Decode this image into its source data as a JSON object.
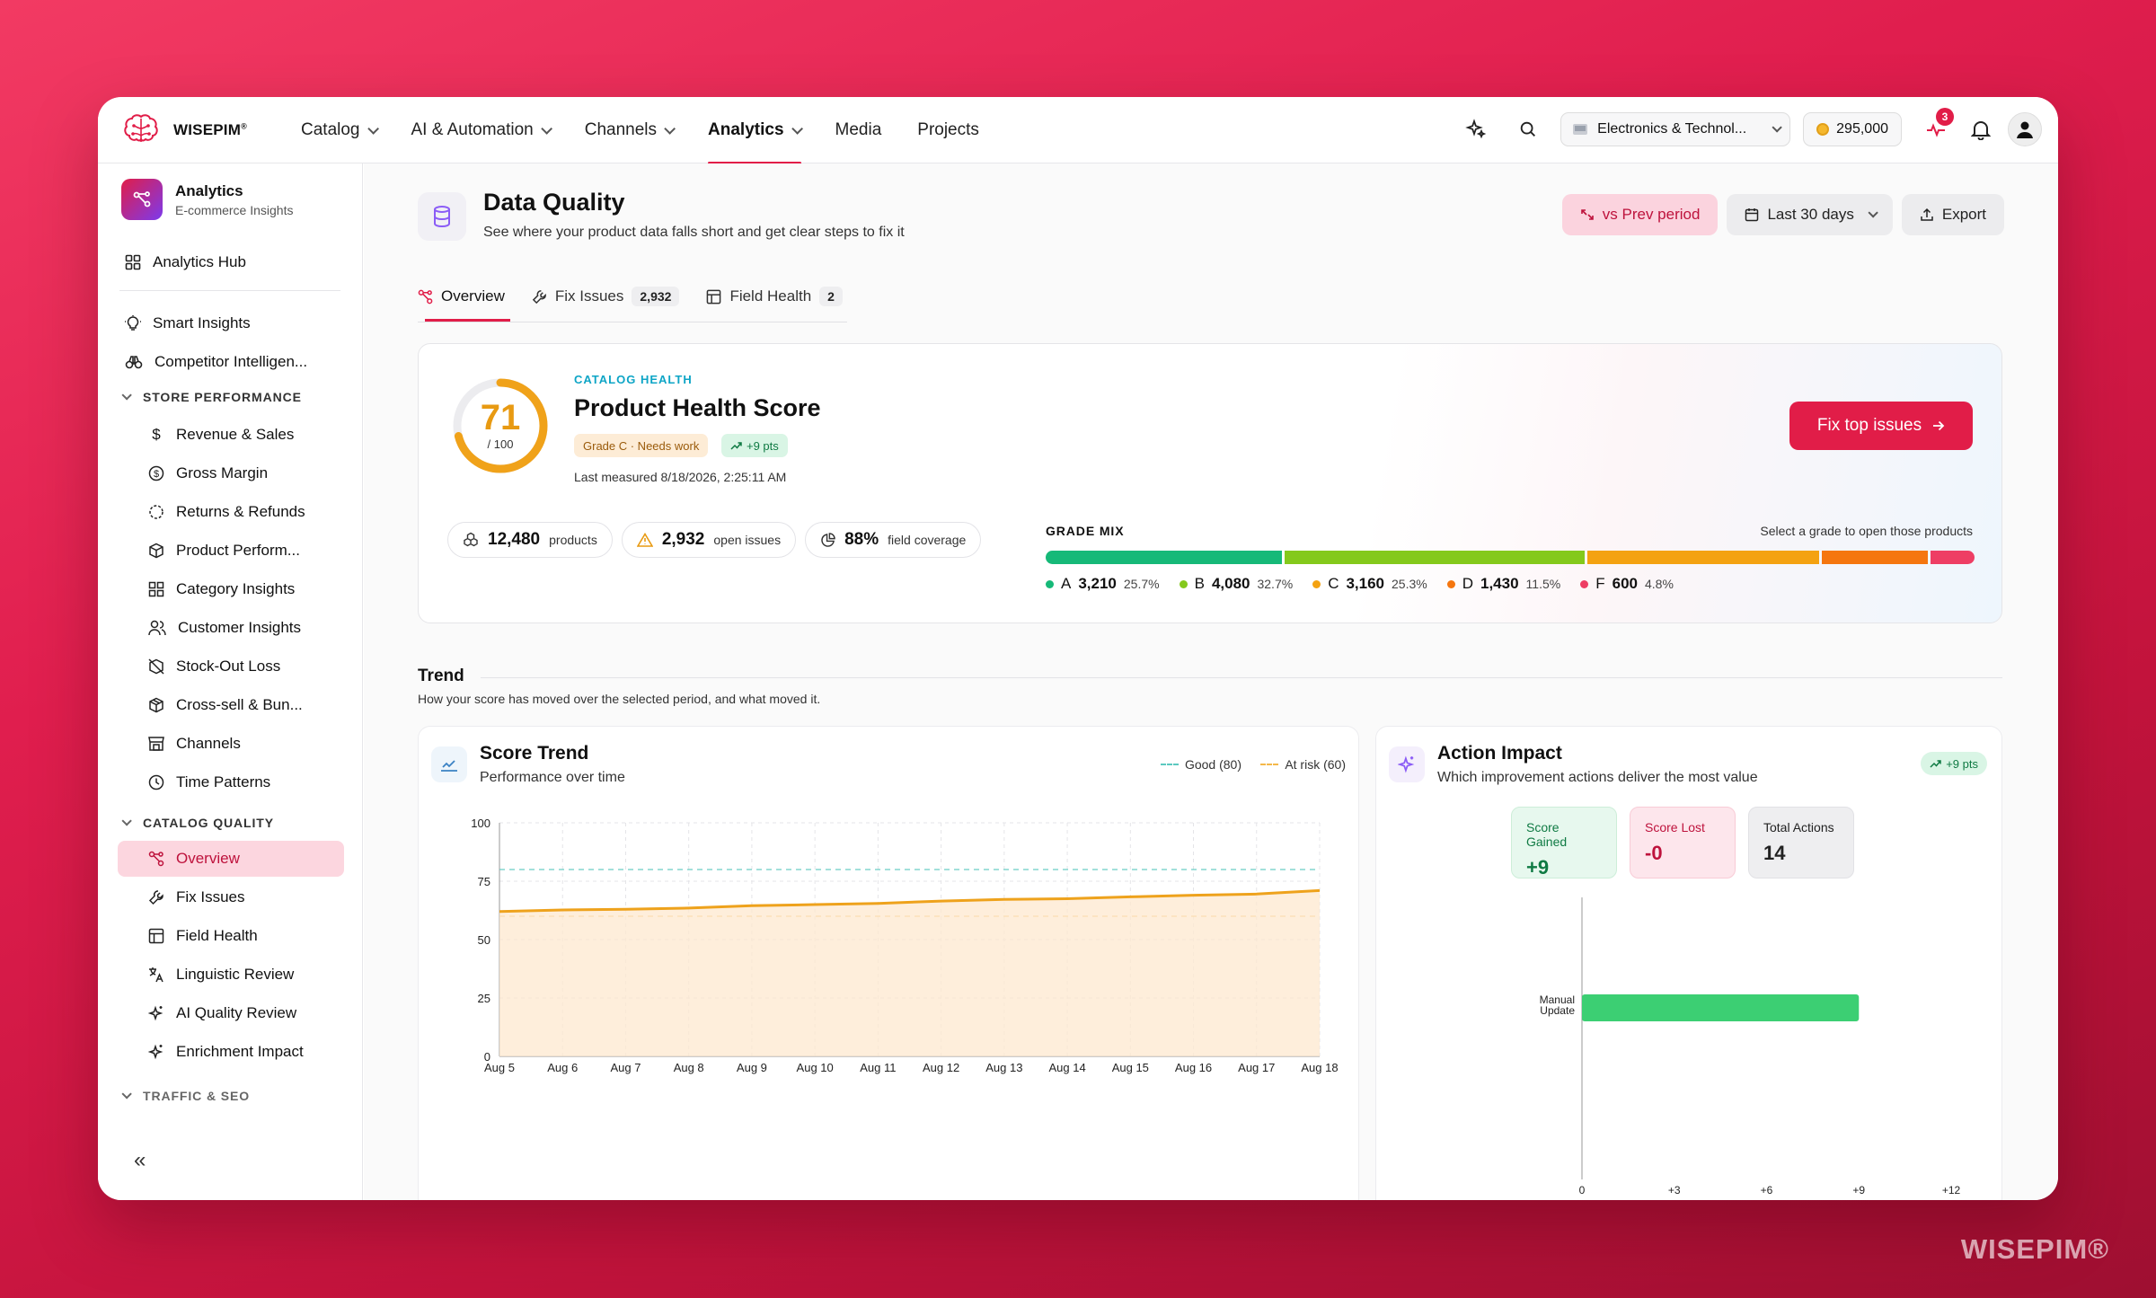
{
  "brand": {
    "name": "WISEPIM",
    "mark": "®",
    "watermark": "WISEPIM®"
  },
  "nav": {
    "items": [
      {
        "label": "Catalog",
        "dropdown": true
      },
      {
        "label": "AI & Automation",
        "dropdown": true
      },
      {
        "label": "Channels",
        "dropdown": true
      },
      {
        "label": "Analytics",
        "dropdown": true,
        "active": true
      },
      {
        "label": "Media"
      },
      {
        "label": "Projects"
      }
    ],
    "store": "Electronics & Technol...",
    "coins": "295,000",
    "alerts_count": "3"
  },
  "sidebar": {
    "title": "Analytics",
    "subtitle": "E-commerce Insights",
    "hub": "Analytics Hub",
    "top_items": [
      "Smart Insights",
      "Competitor Intelligen..."
    ],
    "sections": [
      {
        "label": "STORE PERFORMANCE",
        "items": [
          "Revenue & Sales",
          "Gross Margin",
          "Returns & Refunds",
          "Product Perform...",
          "Category Insights",
          "Customer Insights",
          "Stock-Out Loss",
          "Cross-sell & Bun...",
          "Channels",
          "Time Patterns"
        ]
      },
      {
        "label": "CATALOG QUALITY",
        "items": [
          "Overview",
          "Fix Issues",
          "Field Health",
          "Linguistic Review",
          "AI Quality Review",
          "Enrichment Impact"
        ]
      },
      {
        "label": "TRAFFIC & SEO",
        "items": []
      }
    ],
    "active_item": "Overview",
    "collapse": "«"
  },
  "page": {
    "title": "Data Quality",
    "subtitle": "See where your product data falls short and get clear steps to fix it",
    "actions": {
      "compare": "vs Prev period",
      "range": "Last 30 days",
      "export": "Export"
    },
    "tabs": [
      {
        "label": "Overview",
        "count": ""
      },
      {
        "label": "Fix Issues",
        "count": "2,932"
      },
      {
        "label": "Field Health",
        "count": "2"
      }
    ]
  },
  "health": {
    "eyebrow": "CATALOG HEALTH",
    "title": "Product Health Score",
    "score": 71,
    "score_of": "/ 100",
    "grade": "Grade C · Needs work",
    "delta": "+9 pts",
    "measured": "Last measured 8/18/2026, 2:25:11 AM",
    "cta": "Fix top issues",
    "stats": [
      {
        "value": "12,480",
        "label": "products",
        "icon": "cubes-icon"
      },
      {
        "value": "2,932",
        "label": "open issues",
        "icon": "warning-icon"
      },
      {
        "value": "88%",
        "label": "field coverage",
        "icon": "pie-icon"
      }
    ],
    "grade_mix": {
      "label": "GRADE MIX",
      "hint": "Select a grade to open those products",
      "grades": [
        {
          "grade": "A",
          "count": "3,210",
          "pct": "25.7%",
          "share": 25.7,
          "color": "#16b978"
        },
        {
          "grade": "B",
          "count": "4,080",
          "pct": "32.7%",
          "share": 32.7,
          "color": "#84c91c"
        },
        {
          "grade": "C",
          "count": "3,160",
          "pct": "25.3%",
          "share": 25.3,
          "color": "#f4a211"
        },
        {
          "grade": "D",
          "count": "1,430",
          "pct": "11.5%",
          "share": 11.5,
          "color": "#f5760f"
        },
        {
          "grade": "F",
          "count": "600",
          "pct": "4.8%",
          "share": 4.8,
          "color": "#ee3e64"
        }
      ]
    }
  },
  "trend": {
    "title": "Trend",
    "subtitle": "How your score has moved over the selected period, and what moved it."
  },
  "score_trend": {
    "title": "Score Trend",
    "subtitle": "Performance over time",
    "legend": [
      {
        "label": "Good (80)",
        "color": "#5cc9c0"
      },
      {
        "label": "At risk (60)",
        "color": "#f4b84a"
      }
    ]
  },
  "action_impact": {
    "title": "Action Impact",
    "subtitle": "Which improvement actions deliver the most value",
    "badge": "+9 pts",
    "kpis": [
      {
        "label": "Score Gained",
        "value": "+9"
      },
      {
        "label": "Score Lost",
        "value": "-0"
      },
      {
        "label": "Total Actions",
        "value": "14"
      }
    ]
  },
  "chart_data": [
    {
      "type": "area",
      "title": "Score Trend",
      "x": [
        "Aug 5",
        "Aug 6",
        "Aug 7",
        "Aug 8",
        "Aug 9",
        "Aug 10",
        "Aug 11",
        "Aug 12",
        "Aug 13",
        "Aug 14",
        "Aug 15",
        "Aug 16",
        "Aug 17",
        "Aug 18"
      ],
      "series": [
        {
          "values": [
            62,
            62.7,
            63,
            63.5,
            64.5,
            65,
            65.5,
            66.5,
            67.2,
            67.5,
            68.3,
            69,
            69.5,
            71
          ]
        }
      ],
      "reference_lines": [
        {
          "label": "Good (80)",
          "y": 80
        },
        {
          "label": "At risk (60)",
          "y": 60
        }
      ],
      "ylim": [
        0,
        100
      ],
      "yticks": [
        0,
        25,
        50,
        75,
        100
      ],
      "grid": true
    },
    {
      "type": "bar",
      "orientation": "horizontal",
      "title": "Action Impact",
      "categories": [
        "Manual Update"
      ],
      "values": [
        9
      ],
      "xlim": [
        0,
        12
      ],
      "xticks": [
        "0",
        "+3",
        "+6",
        "+9",
        "+12"
      ],
      "bar_color": "#3ccf73"
    }
  ]
}
